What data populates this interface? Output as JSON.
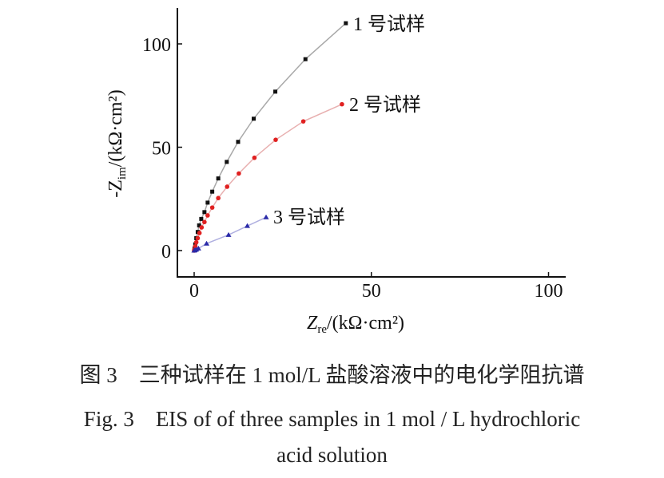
{
  "chart_data": {
    "type": "line",
    "xlabel": {
      "main": "Z",
      "sub": "re",
      "unit": "/(kΩ·cm²)"
    },
    "ylabel": {
      "prefix": "-Z",
      "sub": "im",
      "unit": "/(kΩ·cm²)"
    },
    "xlim": [
      0,
      105
    ],
    "ylim": [
      0,
      117
    ],
    "xticks": [
      "0",
      "50",
      "100"
    ],
    "yticks": [
      "0",
      "50",
      "100"
    ],
    "grid": false,
    "series": [
      {
        "name": "1 号试样",
        "color": "#111111",
        "line_color": "#a8a8a8",
        "marker": "square",
        "x": [
          0,
          0.1,
          0.3,
          0.6,
          1.0,
          1.4,
          2.0,
          2.9,
          3.8,
          5.1,
          6.8,
          9.2,
          12.4,
          16.8,
          22.9,
          31.4,
          42.8
        ],
        "y": [
          0,
          1,
          3,
          6,
          9,
          12.2,
          15.3,
          18.6,
          23.2,
          28.5,
          34.9,
          42.9,
          52.6,
          63.8,
          76.9,
          92.6,
          110
        ]
      },
      {
        "name": "2 号试样",
        "color": "#e02020",
        "line_color": "#e8b0b0",
        "marker": "circle",
        "x": [
          0,
          0.1,
          0.3,
          0.6,
          1.0,
          1.5,
          2.1,
          2.9,
          3.8,
          5.1,
          6.8,
          9.3,
          12.6,
          17.0,
          23.0,
          30.8,
          41.7
        ],
        "y": [
          0,
          0.5,
          2,
          4,
          6,
          8.5,
          11.2,
          13.8,
          17.0,
          20.8,
          25.4,
          30.9,
          37.3,
          44.9,
          53.6,
          62.5,
          70.8
        ]
      },
      {
        "name": "3 号试样",
        "color": "#2a2aa8",
        "line_color": "#b0b0e0",
        "marker": "triangle",
        "x": [
          0,
          0.2,
          0.6,
          1.2,
          3.5,
          9.7,
          15.0,
          20.3
        ],
        "y": [
          0,
          0.2,
          0.5,
          1,
          3.4,
          7.6,
          11.9,
          16.1
        ]
      }
    ]
  },
  "caption": {
    "zh": "图 3　三种试样在 1 mol/L 盐酸溶液中的电化学阻抗谱",
    "en_line1": "Fig. 3　EIS of of three samples in 1 mol / L hydrochloric",
    "en_line2": "acid solution"
  }
}
